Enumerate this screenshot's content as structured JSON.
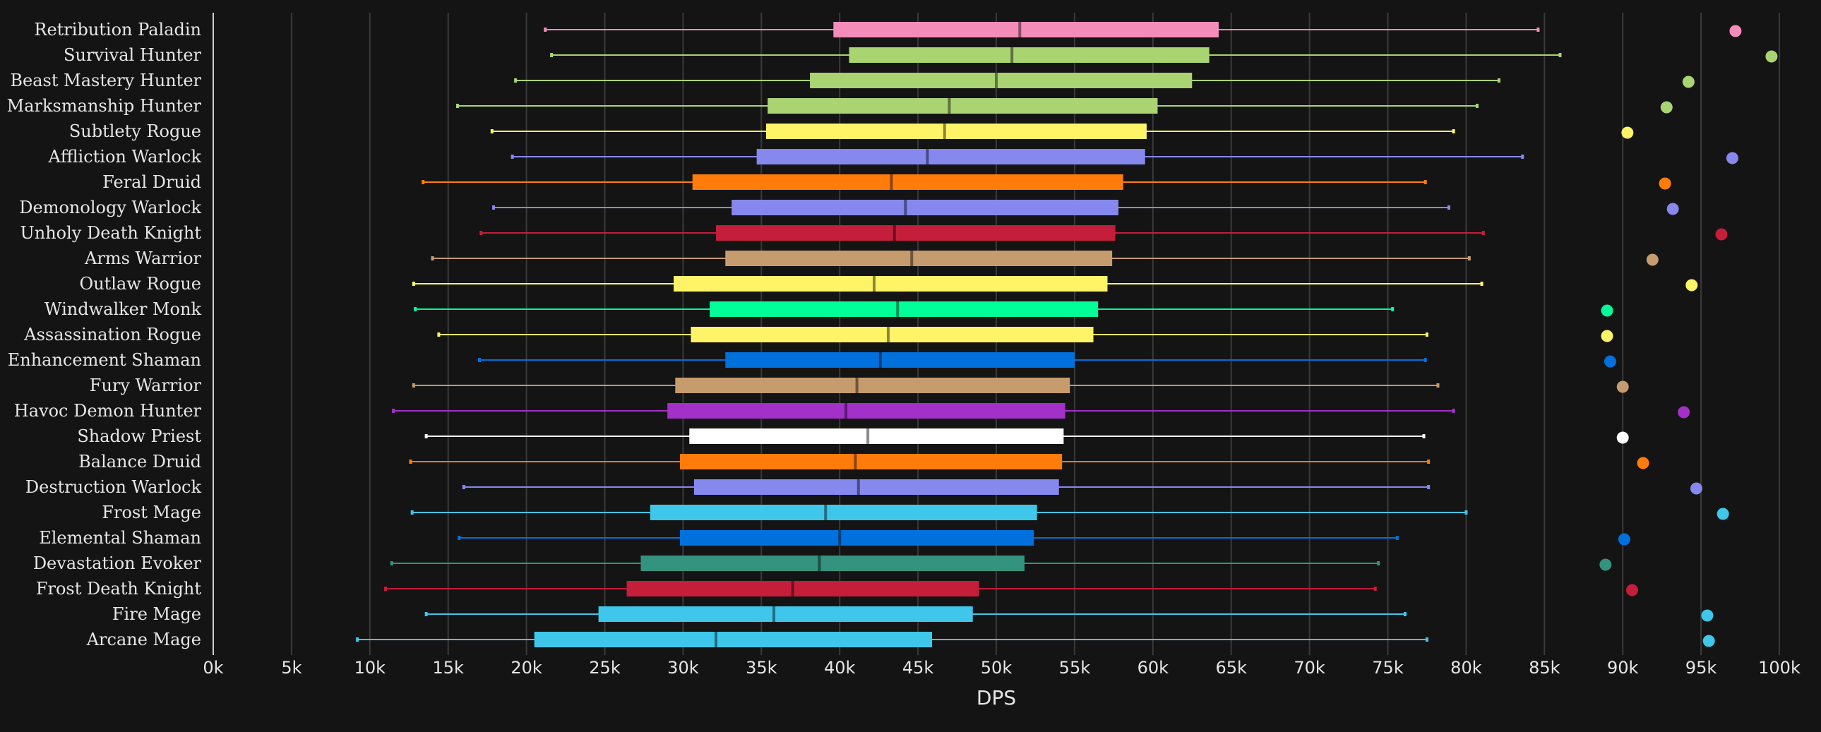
{
  "chart_data": {
    "type": "box",
    "title": "",
    "xlabel": "DPS",
    "ylabel": "",
    "xlim": [
      0,
      100000
    ],
    "orientation": "horizontal",
    "grid": "vertical",
    "x_ticks": [
      "0k",
      "5k",
      "10k",
      "15k",
      "20k",
      "25k",
      "30k",
      "35k",
      "40k",
      "45k",
      "50k",
      "55k",
      "60k",
      "65k",
      "70k",
      "75k",
      "80k",
      "85k",
      "90k",
      "95k",
      "100k"
    ],
    "x_tick_values": [
      0,
      5000,
      10000,
      15000,
      20000,
      25000,
      30000,
      35000,
      40000,
      45000,
      50000,
      55000,
      60000,
      65000,
      70000,
      75000,
      80000,
      85000,
      90000,
      95000,
      100000
    ],
    "categories": [
      "Retribution Paladin",
      "Survival Hunter",
      "Beast Mastery Hunter",
      "Marksmanship Hunter",
      "Subtlety Rogue",
      "Affliction Warlock",
      "Feral Druid",
      "Demonology Warlock",
      "Unholy Death Knight",
      "Arms Warrior",
      "Outlaw Rogue",
      "Windwalker Monk",
      "Assassination Rogue",
      "Enhancement Shaman",
      "Fury Warrior",
      "Havoc Demon Hunter",
      "Shadow Priest",
      "Balance Druid",
      "Destruction Warlock",
      "Frost Mage",
      "Elemental Shaman",
      "Devastation Evoker",
      "Frost Death Knight",
      "Fire Mage",
      "Arcane Mage"
    ],
    "boxes": [
      {
        "min": 21200,
        "q1": 39600,
        "median": 51500,
        "q3": 64200,
        "max": 84600,
        "outlier": 97200,
        "color": "#f48cba"
      },
      {
        "min": 21600,
        "q1": 40600,
        "median": 51000,
        "q3": 63600,
        "max": 86000,
        "outlier": 99500,
        "color": "#aad372"
      },
      {
        "min": 19300,
        "q1": 38100,
        "median": 50000,
        "q3": 62500,
        "max": 82100,
        "outlier": 94200,
        "color": "#aad372"
      },
      {
        "min": 15600,
        "q1": 35400,
        "median": 47000,
        "q3": 60300,
        "max": 80700,
        "outlier": 92800,
        "color": "#aad372"
      },
      {
        "min": 17800,
        "q1": 35300,
        "median": 46700,
        "q3": 59600,
        "max": 79200,
        "outlier": 90300,
        "color": "#fff468"
      },
      {
        "min": 19100,
        "q1": 34700,
        "median": 45600,
        "q3": 59500,
        "max": 83600,
        "outlier": 97000,
        "color": "#8788ee"
      },
      {
        "min": 13400,
        "q1": 30600,
        "median": 43300,
        "q3": 58100,
        "max": 77400,
        "outlier": 92700,
        "color": "#ff7c0a"
      },
      {
        "min": 17900,
        "q1": 33100,
        "median": 44200,
        "q3": 57800,
        "max": 78900,
        "outlier": 93200,
        "color": "#8788ee"
      },
      {
        "min": 17100,
        "q1": 32100,
        "median": 43500,
        "q3": 57600,
        "max": 81100,
        "outlier": 96300,
        "color": "#c41e3a"
      },
      {
        "min": 14000,
        "q1": 32700,
        "median": 44600,
        "q3": 57400,
        "max": 80200,
        "outlier": 91900,
        "color": "#c69b6d"
      },
      {
        "min": 12800,
        "q1": 29400,
        "median": 42200,
        "q3": 57100,
        "max": 81000,
        "outlier": 94400,
        "color": "#fff468"
      },
      {
        "min": 12900,
        "q1": 31700,
        "median": 43700,
        "q3": 56500,
        "max": 75300,
        "outlier": 89000,
        "color": "#00ff98"
      },
      {
        "min": 14400,
        "q1": 30500,
        "median": 43100,
        "q3": 56200,
        "max": 77500,
        "outlier": 89000,
        "color": "#fff468"
      },
      {
        "min": 17000,
        "q1": 32700,
        "median": 42600,
        "q3": 55000,
        "max": 77400,
        "outlier": 89200,
        "color": "#0070dd"
      },
      {
        "min": 12800,
        "q1": 29500,
        "median": 41100,
        "q3": 54700,
        "max": 78200,
        "outlier": 90000,
        "color": "#c69b6d"
      },
      {
        "min": 11500,
        "q1": 29000,
        "median": 40400,
        "q3": 54400,
        "max": 79200,
        "outlier": 93900,
        "color": "#a330c9"
      },
      {
        "min": 13600,
        "q1": 30400,
        "median": 41800,
        "q3": 54300,
        "max": 77300,
        "outlier": 90000,
        "color": "#ffffff"
      },
      {
        "min": 12600,
        "q1": 29800,
        "median": 41000,
        "q3": 54200,
        "max": 77600,
        "outlier": 91300,
        "color": "#ff7c0a"
      },
      {
        "min": 16000,
        "q1": 30700,
        "median": 41200,
        "q3": 54000,
        "max": 77600,
        "outlier": 94700,
        "color": "#8788ee"
      },
      {
        "min": 12700,
        "q1": 27900,
        "median": 39100,
        "q3": 52600,
        "max": 80000,
        "outlier": 96400,
        "color": "#3fc7eb"
      },
      {
        "min": 15700,
        "q1": 29800,
        "median": 40000,
        "q3": 52400,
        "max": 75600,
        "outlier": 90100,
        "color": "#0070dd"
      },
      {
        "min": 11400,
        "q1": 27300,
        "median": 38700,
        "q3": 51800,
        "max": 74400,
        "outlier": 88900,
        "color": "#33937f"
      },
      {
        "min": 11000,
        "q1": 26400,
        "median": 37000,
        "q3": 48900,
        "max": 74200,
        "outlier": 90600,
        "color": "#c41e3a"
      },
      {
        "min": 13600,
        "q1": 24600,
        "median": 35800,
        "q3": 48500,
        "max": 76100,
        "outlier": 95400,
        "color": "#3fc7eb"
      },
      {
        "min": 9200,
        "q1": 20500,
        "median": 32100,
        "q3": 45900,
        "max": 77500,
        "outlier": 95500,
        "color": "#3fc7eb"
      }
    ]
  }
}
